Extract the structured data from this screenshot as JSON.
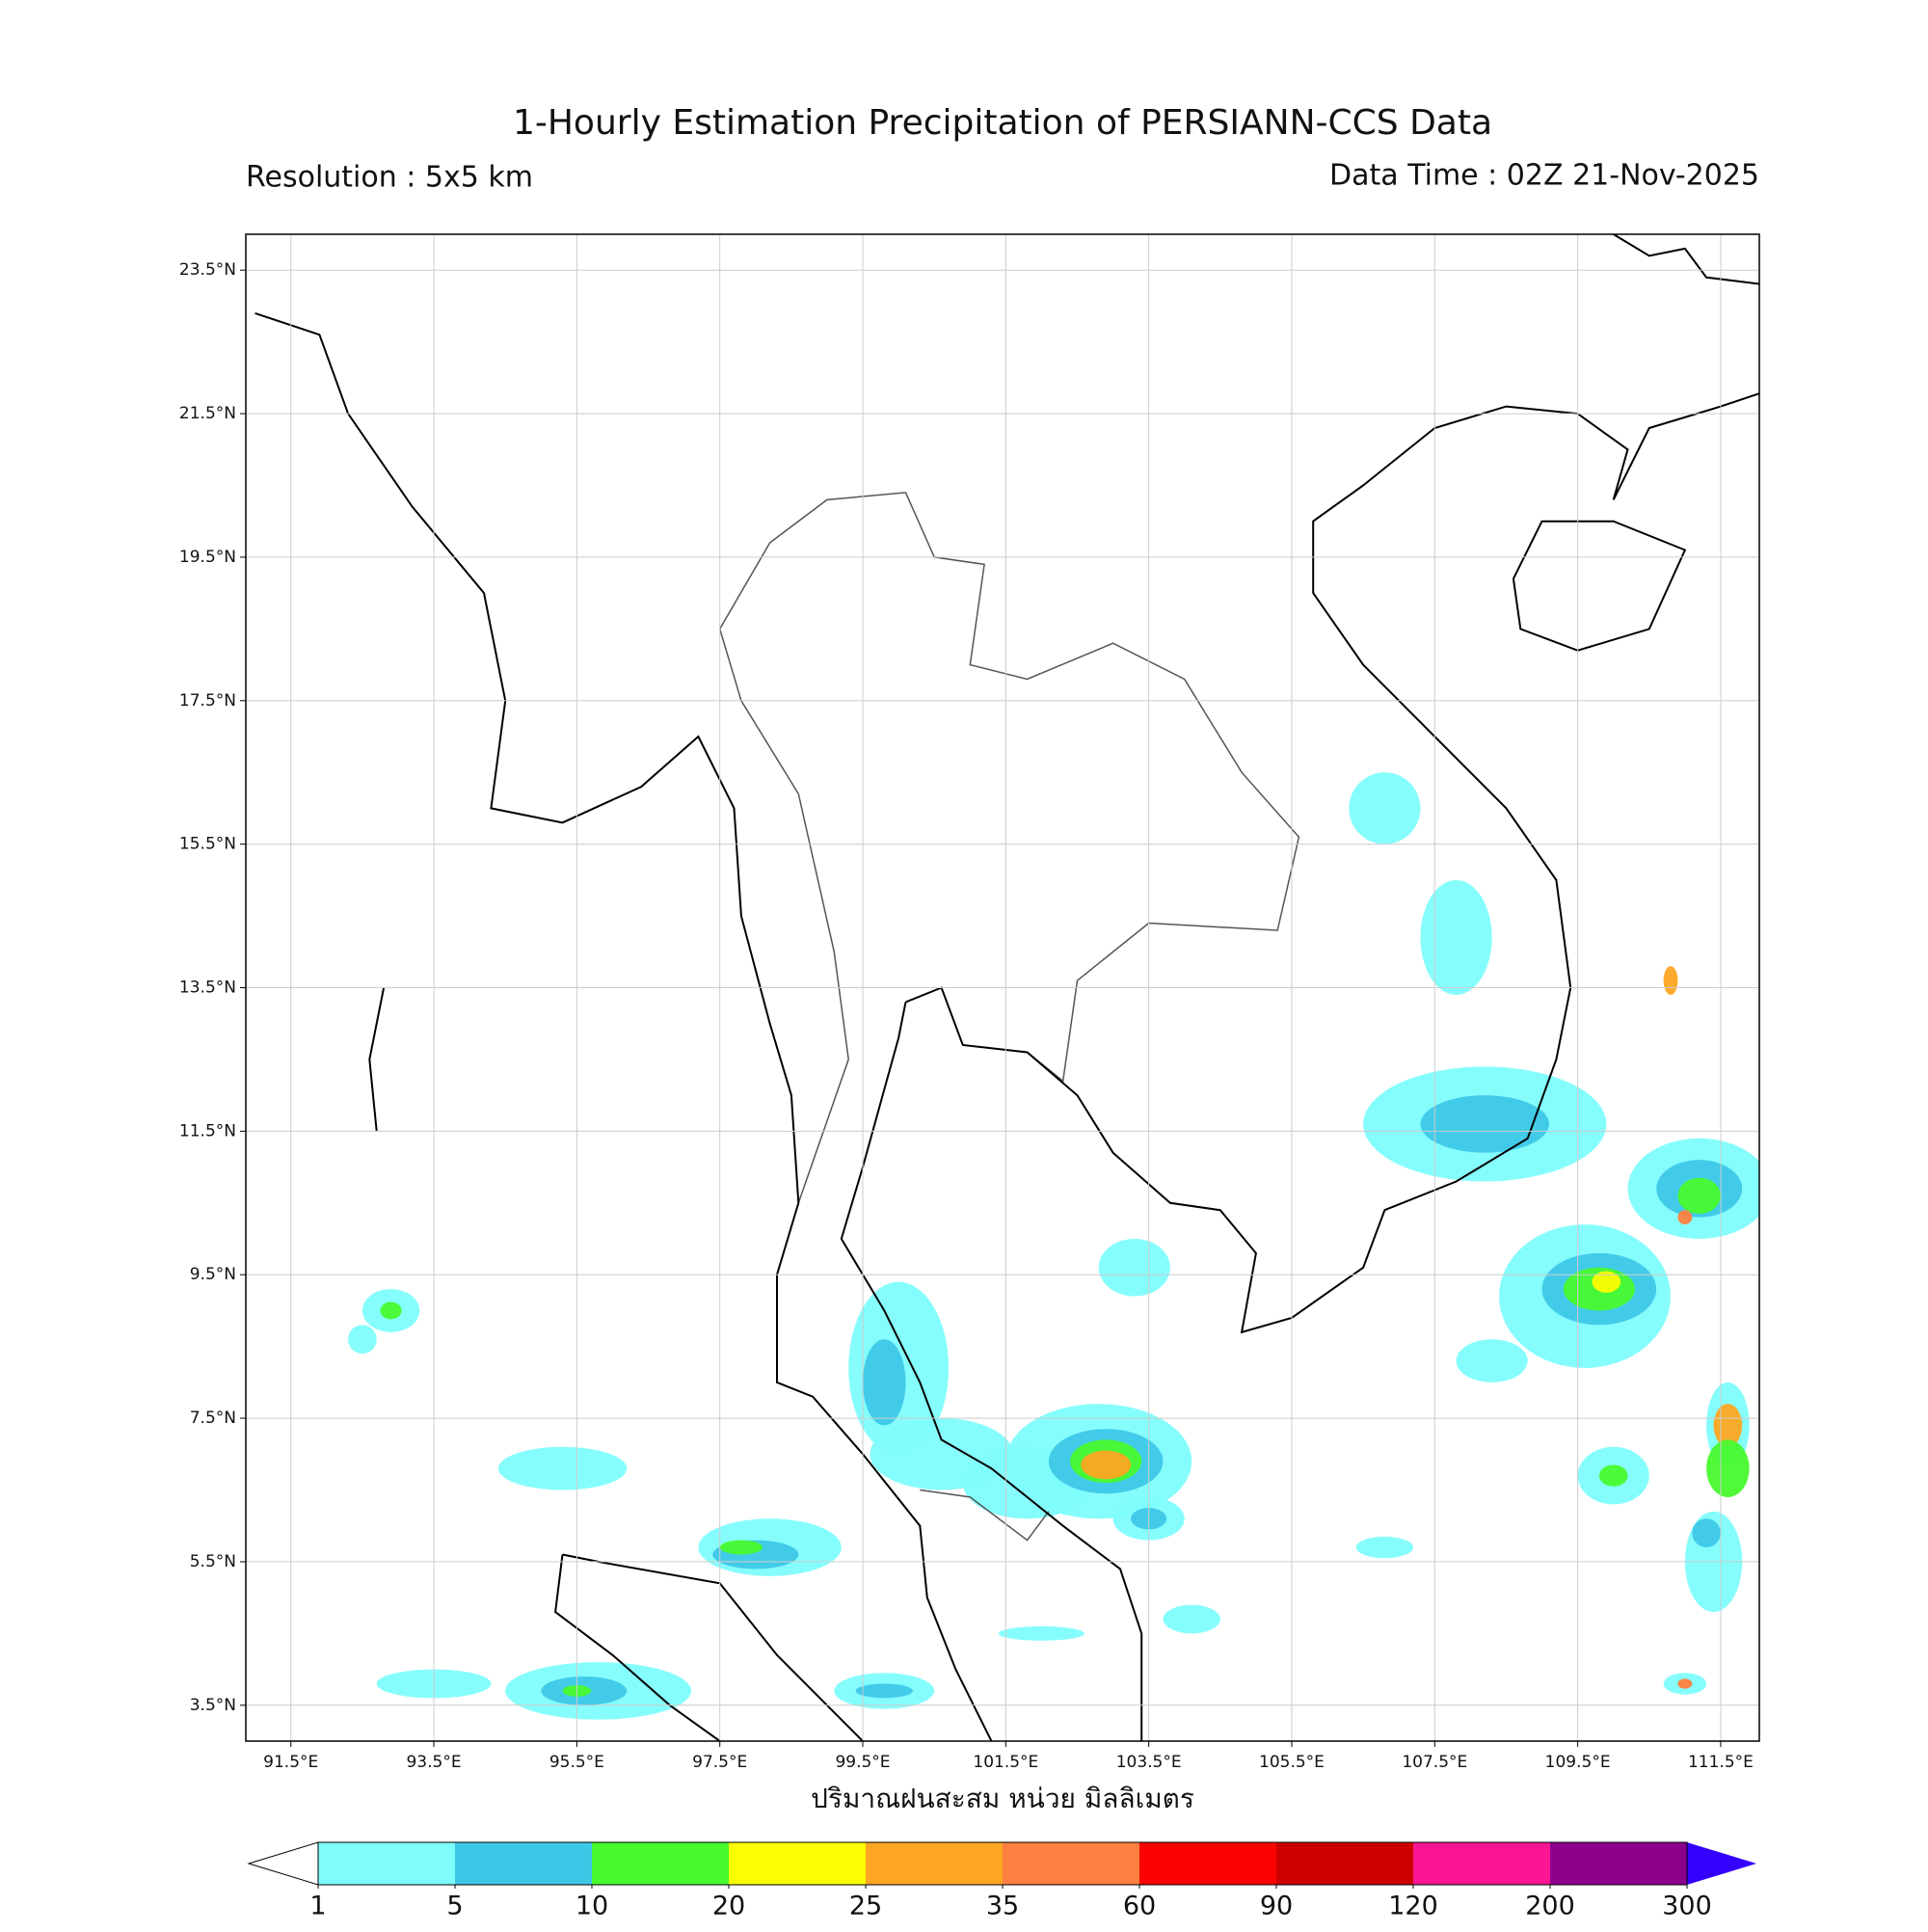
{
  "header": {
    "title": "1-Hourly Estimation Precipitation of PERSIANN-CCS Data",
    "resolution": "Resolution : 5x5 km",
    "data_time": "Data Time : 02Z 21-Nov-2025"
  },
  "map": {
    "xlim": [
      90.87,
      112.04
    ],
    "ylim": [
      3.0,
      24.0
    ],
    "xticks": [
      {
        "value": 91.5,
        "label": "91.5°E"
      },
      {
        "value": 93.5,
        "label": "93.5°E"
      },
      {
        "value": 95.5,
        "label": "95.5°E"
      },
      {
        "value": 97.5,
        "label": "97.5°E"
      },
      {
        "value": 99.5,
        "label": "99.5°E"
      },
      {
        "value": 101.5,
        "label": "101.5°E"
      },
      {
        "value": 103.5,
        "label": "103.5°E"
      },
      {
        "value": 105.5,
        "label": "105.5°E"
      },
      {
        "value": 107.5,
        "label": "107.5°E"
      },
      {
        "value": 109.5,
        "label": "109.5°E"
      },
      {
        "value": 111.5,
        "label": "111.5°E"
      }
    ],
    "yticks": [
      {
        "value": 3.5,
        "label": "3.5°N"
      },
      {
        "value": 5.5,
        "label": "5.5°N"
      },
      {
        "value": 7.5,
        "label": "7.5°N"
      },
      {
        "value": 9.5,
        "label": "9.5°N"
      },
      {
        "value": 11.5,
        "label": "11.5°N"
      },
      {
        "value": 13.5,
        "label": "13.5°N"
      },
      {
        "value": 15.5,
        "label": "15.5°N"
      },
      {
        "value": 17.5,
        "label": "17.5°N"
      },
      {
        "value": 19.5,
        "label": "19.5°N"
      },
      {
        "value": 21.5,
        "label": "21.5°N"
      },
      {
        "value": 23.5,
        "label": "23.5°N"
      }
    ],
    "grid": true,
    "xlabel": "ปริมาณฝนสะสม หน่วย มิลลิเมตร"
  },
  "colorbar": {
    "levels": [
      1,
      5,
      10,
      20,
      25,
      35,
      60,
      90,
      120,
      200,
      300
    ],
    "colors": [
      "#7ffdfd",
      "#3ec8e8",
      "#48fa2e",
      "#fcfd00",
      "#fda622",
      "#fe8040",
      "#fd0000",
      "#cd0000",
      "#fc1694",
      "#8c008c"
    ],
    "over_color": "#3300fd"
  }
}
